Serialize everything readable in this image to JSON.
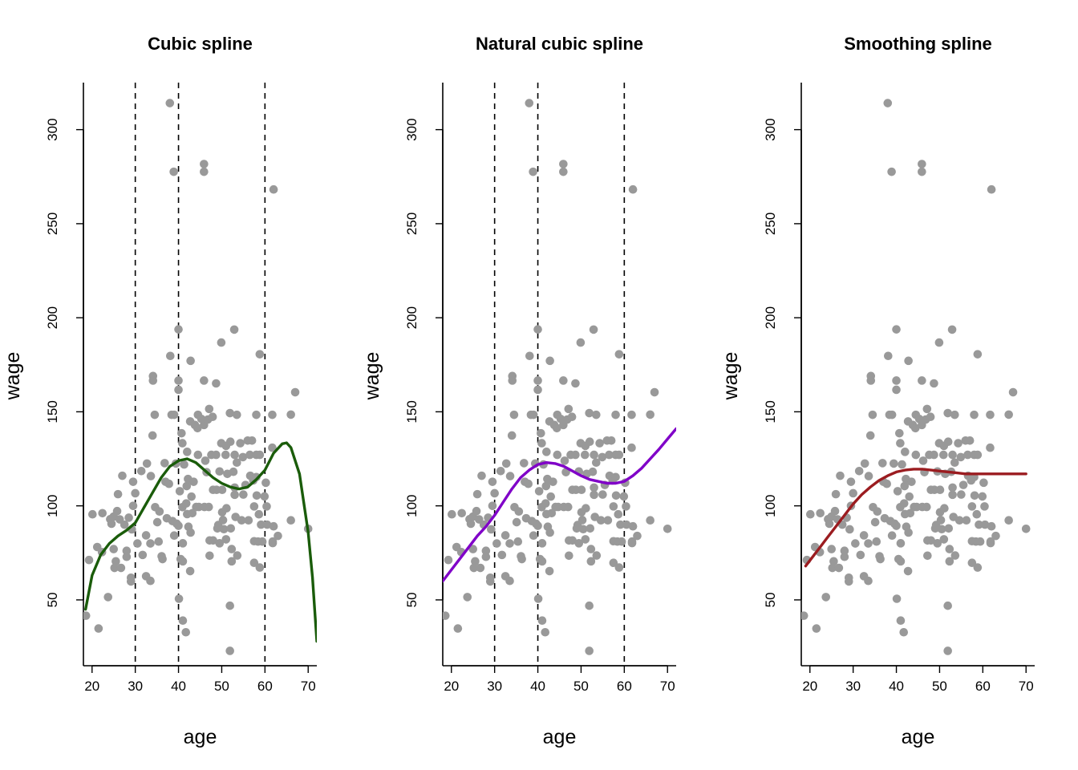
{
  "chart_data": [
    {
      "type": "scatter",
      "title": "Cubic spline",
      "xlabel": "age",
      "ylabel": "wage",
      "xlim": [
        18,
        72
      ],
      "ylim": [
        15,
        325
      ],
      "xticks": [
        20,
        30,
        40,
        50,
        60,
        70
      ],
      "yticks": [
        50,
        100,
        150,
        200,
        250,
        300
      ],
      "knots": [
        30,
        40,
        60
      ],
      "fit": {
        "color": "#1a5c0a",
        "x": [
          18.5,
          20,
          22,
          24,
          26,
          28,
          30,
          32,
          34,
          36,
          38,
          40,
          42,
          44,
          46,
          48,
          50,
          52,
          54,
          56,
          58,
          60,
          62,
          64,
          65,
          66,
          68,
          70,
          71,
          72
        ],
        "y": [
          45,
          63,
          74,
          80,
          84,
          87,
          91,
          99,
          107,
          115,
          121,
          124,
          125,
          123,
          119,
          115,
          112,
          110,
          109,
          110,
          114,
          119,
          128,
          133,
          133.5,
          131,
          117,
          86,
          62,
          28
        ]
      }
    },
    {
      "type": "scatter",
      "title": "Natural cubic spline",
      "xlabel": "age",
      "ylabel": "wage",
      "xlim": [
        18,
        72
      ],
      "ylim": [
        15,
        325
      ],
      "xticks": [
        20,
        30,
        40,
        50,
        60,
        70
      ],
      "yticks": [
        50,
        100,
        150,
        200,
        250,
        300
      ],
      "knots": [
        30,
        40,
        60
      ],
      "fit": {
        "color": "#8000c8",
        "x": [
          18,
          20,
          22,
          24,
          26,
          28,
          30,
          32,
          34,
          36,
          38,
          40,
          42,
          44,
          46,
          48,
          50,
          52,
          54,
          56,
          58,
          60,
          62,
          64,
          66,
          68,
          70,
          72
        ],
        "y": [
          60,
          66,
          72,
          78,
          84,
          89,
          95,
          102,
          109,
          115,
          119,
          122,
          123,
          122.5,
          121,
          118.5,
          116,
          114,
          113,
          112,
          112,
          113,
          116,
          120,
          125,
          130,
          135.5,
          141
        ]
      }
    },
    {
      "type": "scatter",
      "title": "Smoothing spline",
      "xlabel": "age",
      "ylabel": "wage",
      "xlim": [
        18,
        72
      ],
      "ylim": [
        15,
        325
      ],
      "xticks": [
        20,
        30,
        40,
        50,
        60,
        70
      ],
      "yticks": [
        50,
        100,
        150,
        200,
        250,
        300
      ],
      "knots": [],
      "fit": {
        "color": "#9b1c20",
        "x": [
          19,
          20,
          22,
          24,
          26,
          28,
          30,
          32,
          34,
          36,
          38,
          40,
          42,
          44,
          46,
          48,
          50,
          52,
          54,
          56,
          58,
          60,
          62,
          64,
          66,
          68,
          70
        ],
        "y": [
          68,
          71,
          77,
          83,
          89,
          95,
          101,
          106,
          110,
          113.5,
          116,
          118,
          119,
          119.5,
          119.5,
          119,
          118.5,
          118,
          117.5,
          117,
          117,
          117,
          117,
          117,
          117,
          117,
          117
        ]
      }
    }
  ],
  "scatter_points": {
    "color": "#999999",
    "points": [
      [
        18.6,
        41.6
      ],
      [
        19.3,
        71.2
      ],
      [
        20.1,
        95.5
      ],
      [
        21.2,
        78.1
      ],
      [
        21.5,
        34.8
      ],
      [
        22.3,
        75.4
      ],
      [
        22.4,
        96.1
      ],
      [
        23.7,
        51.5
      ],
      [
        24.2,
        92.9
      ],
      [
        24.5,
        90.5
      ],
      [
        25.0,
        77.0
      ],
      [
        25.0,
        94.3
      ],
      [
        25.2,
        67.0
      ],
      [
        25.5,
        70.5
      ],
      [
        25.8,
        97.2
      ],
      [
        26.0,
        106.2
      ],
      [
        26.4,
        92.8
      ],
      [
        26.7,
        67.0
      ],
      [
        27.0,
        116.0
      ],
      [
        27.5,
        90.0
      ],
      [
        28.0,
        76.1
      ],
      [
        28.0,
        72.9
      ],
      [
        28.5,
        93.7
      ],
      [
        29.0,
        61.8
      ],
      [
        29.0,
        59.8
      ],
      [
        29.2,
        87.5
      ],
      [
        29.5,
        112.8
      ],
      [
        29.5,
        100.0
      ],
      [
        30.0,
        106.7
      ],
      [
        30.5,
        80.0
      ],
      [
        31.4,
        118.5
      ],
      [
        31.7,
        73.9
      ],
      [
        32.5,
        84.3
      ],
      [
        32.5,
        62.6
      ],
      [
        32.7,
        122.5
      ],
      [
        33.5,
        80.0
      ],
      [
        33.5,
        60.1
      ],
      [
        33.6,
        115.8
      ],
      [
        34.0,
        137.4
      ],
      [
        34.1,
        169.0
      ],
      [
        34.1,
        166.6
      ],
      [
        34.5,
        148.4
      ],
      [
        34.6,
        99.3
      ],
      [
        35.1,
        91.3
      ],
      [
        35.4,
        81.0
      ],
      [
        35.6,
        97.0
      ],
      [
        36.1,
        73.2
      ],
      [
        36.3,
        71.7
      ],
      [
        36.8,
        122.7
      ],
      [
        37.0,
        112.8
      ],
      [
        37.3,
        93.4
      ],
      [
        37.8,
        111.7
      ],
      [
        38.0,
        314.1
      ],
      [
        38.1,
        179.7
      ],
      [
        38.4,
        148.4
      ],
      [
        38.6,
        91.9
      ],
      [
        38.9,
        277.6
      ],
      [
        39.0,
        84.2
      ],
      [
        39.0,
        148.4
      ],
      [
        39.4,
        122.5
      ],
      [
        39.6,
        90.5
      ],
      [
        40.0,
        193.8
      ],
      [
        40.0,
        166.6
      ],
      [
        40.0,
        161.7
      ],
      [
        40.0,
        89.4
      ],
      [
        40.1,
        50.6
      ],
      [
        40.3,
        107.8
      ],
      [
        40.5,
        71.7
      ],
      [
        40.7,
        138.6
      ],
      [
        40.9,
        133.3
      ],
      [
        40.9,
        99.3
      ],
      [
        41.0,
        80.1
      ],
      [
        41.0,
        70.5
      ],
      [
        41.0,
        39.0
      ],
      [
        41.3,
        122.0
      ],
      [
        41.7,
        32.8
      ],
      [
        41.8,
        101.3
      ],
      [
        41.9,
        110.5
      ],
      [
        42.0,
        128.7
      ],
      [
        42.0,
        95.6
      ],
      [
        42.2,
        114.3
      ],
      [
        42.3,
        88.9
      ],
      [
        42.7,
        144.9
      ],
      [
        42.7,
        65.3
      ],
      [
        42.8,
        177.1
      ],
      [
        42.8,
        85.8
      ],
      [
        43.0,
        104.9
      ],
      [
        43.2,
        96.1
      ],
      [
        43.5,
        112.8
      ],
      [
        43.8,
        143.0
      ],
      [
        44.1,
        99.4
      ],
      [
        44.4,
        141.3
      ],
      [
        44.5,
        148.4
      ],
      [
        44.5,
        127.1
      ],
      [
        44.7,
        99.4
      ],
      [
        45.3,
        146.2
      ],
      [
        45.9,
        281.7
      ],
      [
        45.9,
        277.6
      ],
      [
        45.9,
        166.6
      ],
      [
        45.9,
        143.0
      ],
      [
        46.0,
        99.4
      ],
      [
        46.2,
        124.0
      ],
      [
        46.5,
        117.9
      ],
      [
        46.8,
        145.9
      ],
      [
        47.0,
        99.4
      ],
      [
        47.1,
        151.5
      ],
      [
        47.2,
        81.6
      ],
      [
        47.2,
        73.5
      ],
      [
        47.6,
        127.1
      ],
      [
        47.9,
        147.3
      ],
      [
        48.0,
        108.5
      ],
      [
        48.0,
        81.6
      ],
      [
        48.7,
        165.1
      ],
      [
        48.7,
        127.1
      ],
      [
        48.8,
        108.5
      ],
      [
        49.0,
        88.0
      ],
      [
        49.2,
        89.8
      ],
      [
        49.5,
        118.3
      ],
      [
        49.5,
        80.1
      ],
      [
        49.9,
        133.3
      ],
      [
        49.9,
        186.8
      ],
      [
        50.1,
        108.5
      ],
      [
        50.1,
        96.6
      ],
      [
        50.3,
        92.4
      ],
      [
        50.5,
        87.6
      ],
      [
        50.9,
        127.1
      ],
      [
        51.0,
        131.9
      ],
      [
        51.0,
        82.2
      ],
      [
        51.1,
        98.7
      ],
      [
        51.3,
        117.0
      ],
      [
        51.9,
        149.3
      ],
      [
        51.9,
        46.9
      ],
      [
        51.9,
        22.9
      ],
      [
        52.0,
        134.1
      ],
      [
        52.1,
        88.0
      ],
      [
        52.3,
        70.5
      ],
      [
        52.3,
        77.0
      ],
      [
        52.7,
        118.1
      ],
      [
        52.9,
        193.7
      ],
      [
        53.0,
        127.1
      ],
      [
        53.0,
        109.7
      ],
      [
        53.0,
        105.9
      ],
      [
        53.2,
        94.1
      ],
      [
        53.5,
        148.4
      ],
      [
        53.5,
        123.0
      ],
      [
        53.6,
        73.6
      ],
      [
        54.3,
        133.3
      ],
      [
        54.6,
        92.3
      ],
      [
        54.9,
        125.9
      ],
      [
        55.0,
        106.0
      ],
      [
        55.5,
        111.1
      ],
      [
        56.0,
        134.7
      ],
      [
        56.2,
        92.3
      ],
      [
        56.5,
        127.1
      ],
      [
        56.6,
        116.0
      ],
      [
        57.0,
        134.7
      ],
      [
        57.3,
        113.5
      ],
      [
        57.5,
        99.7
      ],
      [
        57.5,
        81.2
      ],
      [
        57.5,
        69.7
      ],
      [
        58.0,
        148.4
      ],
      [
        58.0,
        127.1
      ],
      [
        58.0,
        115.3
      ],
      [
        58.1,
        105.5
      ],
      [
        58.4,
        81.0
      ],
      [
        58.6,
        95.5
      ],
      [
        58.8,
        180.6
      ],
      [
        58.8,
        127.1
      ],
      [
        58.8,
        67.2
      ],
      [
        59.1,
        90.0
      ],
      [
        59.4,
        81.0
      ],
      [
        59.9,
        105.0
      ],
      [
        60.2,
        112.3
      ],
      [
        60.4,
        99.7
      ],
      [
        60.5,
        90.0
      ],
      [
        61.7,
        148.4
      ],
      [
        61.7,
        130.9
      ],
      [
        61.8,
        81.0
      ],
      [
        61.8,
        80.2
      ],
      [
        62.0,
        268.2
      ],
      [
        62.0,
        89.1
      ],
      [
        63.0,
        84.0
      ],
      [
        66.0,
        148.5
      ],
      [
        66.0,
        92.3
      ],
      [
        67.0,
        160.4
      ],
      [
        70.0,
        87.8
      ]
    ]
  }
}
